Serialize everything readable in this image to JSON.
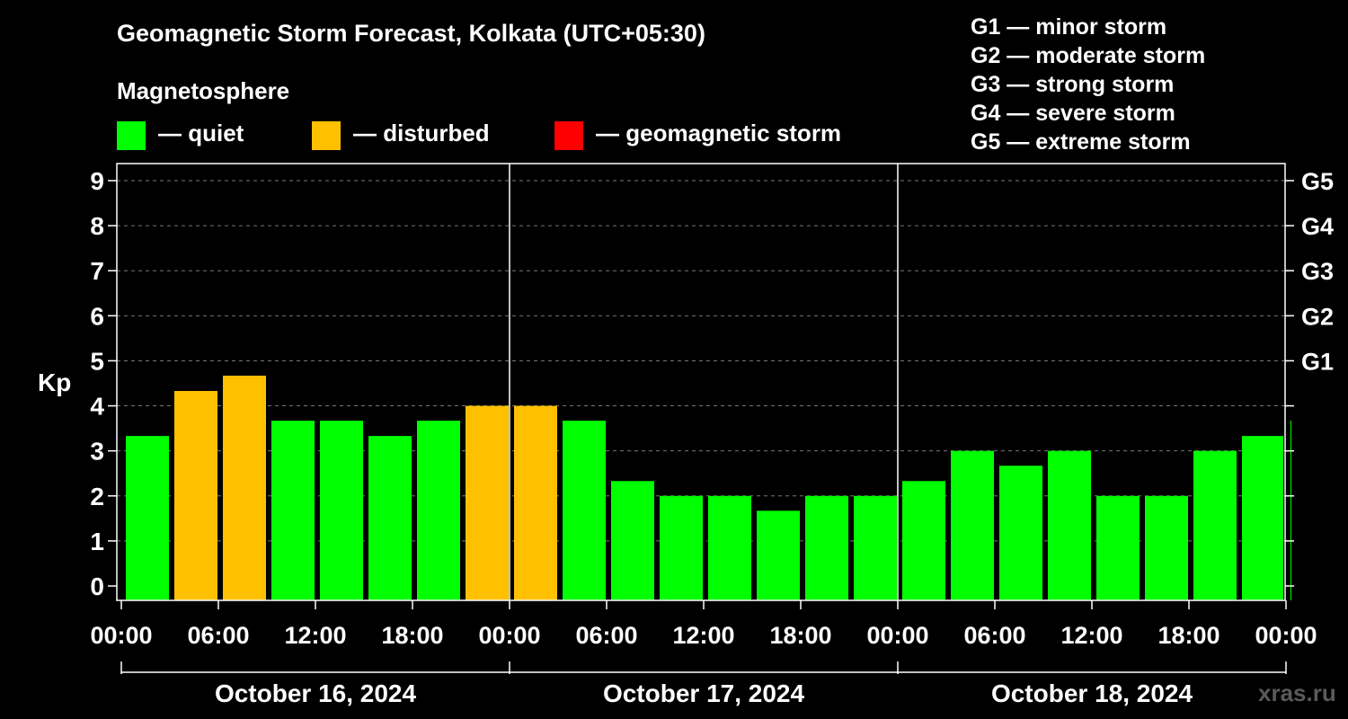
{
  "title": "Geomagnetic Storm Forecast, Kolkata (UTC+05:30)",
  "legend": {
    "title": "Magnetosphere",
    "items": [
      {
        "label": "— quiet",
        "color": "#00ff00"
      },
      {
        "label": "— disturbed",
        "color": "#ffc000"
      },
      {
        "label": "— geomagnetic storm",
        "color": "#ff0000"
      }
    ]
  },
  "storm_scale": [
    "G1 — minor storm",
    "G2 — moderate storm",
    "G3 — strong storm",
    "G4 — severe storm",
    "G5 — extreme storm"
  ],
  "watermark": "xras.ru",
  "chart_data": {
    "type": "bar",
    "ylabel": "Kp",
    "ylim": [
      0,
      9
    ],
    "yticks": [
      "0",
      "1",
      "2",
      "3",
      "4",
      "5",
      "6",
      "7",
      "8",
      "9"
    ],
    "right_ticks": [
      {
        "value": 5,
        "label": "G1"
      },
      {
        "value": 6,
        "label": "G2"
      },
      {
        "value": 7,
        "label": "G3"
      },
      {
        "value": 8,
        "label": "G4"
      },
      {
        "value": 9,
        "label": "G5"
      }
    ],
    "grid": true,
    "xticks": [
      "00:00",
      "06:00",
      "12:00",
      "18:00",
      "00:00",
      "06:00",
      "12:00",
      "18:00",
      "00:00",
      "06:00",
      "12:00",
      "18:00",
      "00:00"
    ],
    "days": [
      "October 16, 2024",
      "October 17, 2024",
      "October 18, 2024"
    ],
    "interval_hours": 3,
    "values": [
      3.33,
      4.33,
      4.67,
      3.67,
      3.67,
      3.33,
      3.67,
      4.0,
      4.0,
      3.67,
      2.33,
      2.0,
      2.0,
      1.67,
      2.0,
      2.0,
      2.33,
      3.0,
      2.67,
      3.0,
      2.0,
      2.0,
      3.0,
      3.33,
      3.67
    ],
    "status": [
      "quiet",
      "disturbed",
      "disturbed",
      "quiet",
      "quiet",
      "quiet",
      "quiet",
      "disturbed",
      "disturbed",
      "quiet",
      "quiet",
      "quiet",
      "quiet",
      "quiet",
      "quiet",
      "quiet",
      "quiet",
      "quiet",
      "quiet",
      "quiet",
      "quiet",
      "quiet",
      "quiet",
      "quiet",
      "quiet"
    ]
  }
}
